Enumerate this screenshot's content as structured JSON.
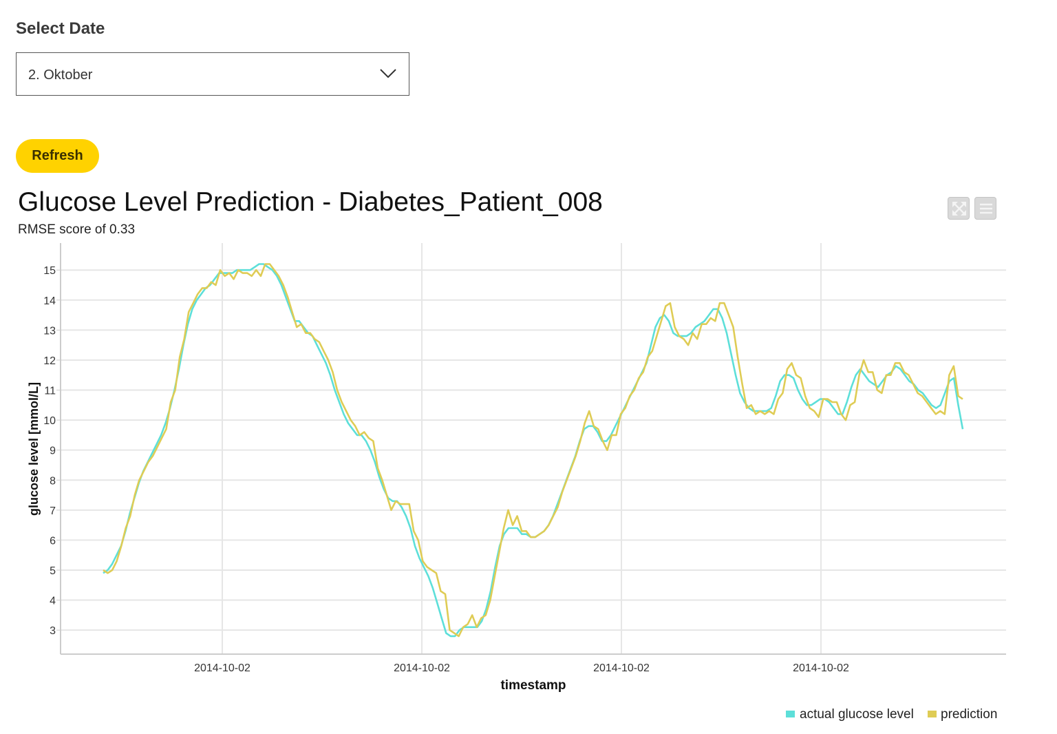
{
  "selector": {
    "label": "Select Date",
    "value": "2. Oktober"
  },
  "refresh_button": {
    "label": "Refresh"
  },
  "toolbar": {
    "icons": [
      "expand-icon",
      "menu-icon"
    ]
  },
  "colors": {
    "actual": "#5ddfd9",
    "prediction": "#dfcc55",
    "refresh": "#ffd200"
  },
  "chart_data": {
    "type": "line",
    "title": "Glucose Level Prediction - Diabetes_Patient_008",
    "subtitle": "RMSE score of 0.33",
    "xlabel": "timestamp",
    "ylabel": "glucose level [mmol/L]",
    "ylim": [
      2.2,
      15.9
    ],
    "yticks": [
      3,
      4,
      5,
      6,
      7,
      8,
      9,
      10,
      11,
      12,
      13,
      14,
      15
    ],
    "xticks": [
      "2014-10-02",
      "2014-10-02",
      "2014-10-02",
      "2014-10-02"
    ],
    "grid": true,
    "legend": "bottom-right",
    "series": [
      {
        "name": "actual glucose level",
        "values": [
          4.9,
          5.0,
          5.2,
          5.5,
          5.8,
          6.3,
          6.9,
          7.4,
          7.9,
          8.3,
          8.6,
          8.9,
          9.2,
          9.5,
          9.9,
          10.4,
          11.0,
          11.7,
          12.5,
          13.2,
          13.7,
          14.0,
          14.2,
          14.4,
          14.5,
          14.7,
          14.9,
          14.9,
          14.9,
          14.9,
          15.0,
          15.0,
          15.0,
          15.0,
          15.1,
          15.2,
          15.2,
          15.1,
          15.0,
          14.8,
          14.5,
          14.1,
          13.7,
          13.3,
          13.3,
          13.1,
          12.9,
          12.8,
          12.5,
          12.2,
          11.9,
          11.5,
          11.0,
          10.6,
          10.2,
          9.9,
          9.7,
          9.5,
          9.5,
          9.3,
          9.0,
          8.6,
          8.1,
          7.7,
          7.4,
          7.3,
          7.3,
          7.1,
          6.8,
          6.4,
          5.8,
          5.4,
          5.1,
          4.8,
          4.4,
          3.9,
          3.4,
          2.9,
          2.8,
          2.8,
          3.0,
          3.1,
          3.1,
          3.1,
          3.1,
          3.3,
          3.7,
          4.3,
          5.1,
          5.8,
          6.2,
          6.4,
          6.4,
          6.4,
          6.2,
          6.2,
          6.1,
          6.1,
          6.2,
          6.3,
          6.5,
          6.8,
          7.2,
          7.6,
          8.0,
          8.4,
          8.8,
          9.3,
          9.7,
          9.8,
          9.8,
          9.6,
          9.3,
          9.3,
          9.5,
          9.8,
          10.1,
          10.4,
          10.7,
          11.0,
          11.3,
          11.6,
          11.9,
          12.5,
          13.1,
          13.4,
          13.5,
          13.3,
          12.9,
          12.8,
          12.8,
          12.8,
          12.9,
          13.1,
          13.2,
          13.3,
          13.5,
          13.7,
          13.7,
          13.4,
          12.9,
          12.2,
          11.5,
          10.9,
          10.6,
          10.4,
          10.3,
          10.3,
          10.3,
          10.3,
          10.4,
          10.8,
          11.3,
          11.5,
          11.5,
          11.4,
          11.0,
          10.7,
          10.5,
          10.5,
          10.6,
          10.7,
          10.7,
          10.6,
          10.4,
          10.2,
          10.2,
          10.6,
          11.1,
          11.5,
          11.7,
          11.5,
          11.3,
          11.2,
          11.1,
          11.3,
          11.5,
          11.6,
          11.8,
          11.7,
          11.5,
          11.3,
          11.2,
          11.0,
          10.9,
          10.7,
          10.5,
          10.4,
          10.5,
          10.9,
          11.3,
          11.4,
          10.5,
          9.7
        ],
        "color": "#5ddfd9"
      },
      {
        "name": "prediction",
        "values": [
          5.0,
          4.9,
          5.0,
          5.3,
          5.8,
          6.4,
          6.8,
          7.5,
          8.0,
          8.3,
          8.6,
          8.8,
          9.1,
          9.4,
          9.7,
          10.6,
          11.0,
          12.1,
          12.7,
          13.6,
          13.9,
          14.2,
          14.4,
          14.4,
          14.6,
          14.5,
          15.0,
          14.8,
          14.9,
          14.7,
          15.0,
          14.9,
          14.9,
          14.8,
          15.0,
          14.8,
          15.2,
          15.2,
          15.0,
          14.8,
          14.5,
          14.1,
          13.6,
          13.1,
          13.2,
          12.9,
          12.9,
          12.7,
          12.6,
          12.3,
          12.0,
          11.6,
          11.0,
          10.6,
          10.3,
          10.0,
          9.8,
          9.5,
          9.6,
          9.4,
          9.3,
          8.4,
          8.0,
          7.5,
          7.0,
          7.3,
          7.2,
          7.2,
          7.2,
          6.3,
          6.0,
          5.3,
          5.1,
          5.0,
          4.9,
          4.3,
          4.2,
          3.0,
          2.9,
          2.8,
          3.1,
          3.2,
          3.5,
          3.1,
          3.4,
          3.5,
          4.0,
          4.8,
          5.6,
          6.4,
          7.0,
          6.5,
          6.8,
          6.3,
          6.3,
          6.1,
          6.1,
          6.2,
          6.3,
          6.5,
          6.8,
          7.1,
          7.6,
          8.0,
          8.4,
          8.8,
          9.3,
          9.9,
          10.3,
          9.8,
          9.7,
          9.3,
          9.0,
          9.5,
          9.5,
          10.2,
          10.4,
          10.8,
          11.0,
          11.4,
          11.6,
          12.1,
          12.3,
          12.8,
          13.3,
          13.8,
          13.9,
          13.1,
          12.8,
          12.7,
          12.5,
          12.9,
          12.7,
          13.2,
          13.2,
          13.4,
          13.3,
          13.9,
          13.9,
          13.5,
          13.1,
          12.1,
          11.2,
          10.4,
          10.5,
          10.2,
          10.3,
          10.2,
          10.3,
          10.2,
          10.7,
          10.9,
          11.7,
          11.9,
          11.5,
          11.4,
          10.8,
          10.4,
          10.3,
          10.1,
          10.7,
          10.7,
          10.6,
          10.6,
          10.2,
          10.0,
          10.5,
          10.6,
          11.5,
          12.0,
          11.6,
          11.6,
          11.0,
          10.9,
          11.5,
          11.5,
          11.9,
          11.9,
          11.6,
          11.5,
          11.2,
          10.9,
          10.8,
          10.6,
          10.4,
          10.2,
          10.3,
          10.2,
          11.5,
          11.8,
          10.8,
          10.7
        ],
        "color": "#dfcc55"
      }
    ]
  }
}
